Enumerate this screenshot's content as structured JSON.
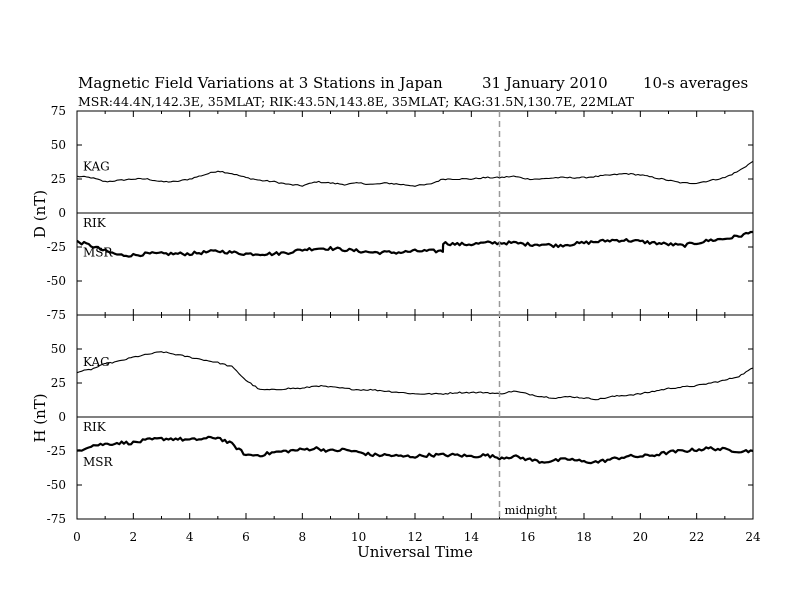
{
  "header": {
    "title": "Magnetic Field Variations at 3 Stations in Japan",
    "date": "31 January 2010",
    "averaging": "10-s averages",
    "stations": "MSR:44.4N,142.3E, 35MLAT;  RIK:43.5N,143.8E, 35MLAT;  KAG:31.5N,130.7E, 22MLAT"
  },
  "chart_data": [
    {
      "type": "line",
      "panel": "D",
      "ylabel": "D (nT)",
      "ylim": [
        -75,
        75
      ],
      "yticks": [
        75,
        50,
        25,
        0,
        -25,
        -50,
        -75
      ],
      "xlim": [
        0,
        24
      ],
      "zero_line": true,
      "zero_line_label": "RIK",
      "series": [
        {
          "name": "KAG",
          "x": [
            0,
            0.5,
            1,
            1.5,
            2,
            2.5,
            3,
            3.5,
            4,
            4.5,
            5,
            5.5,
            6,
            6.5,
            7,
            7.5,
            8,
            8.5,
            9,
            9.5,
            10,
            10.5,
            11,
            11.5,
            12,
            12.5,
            13,
            13.5,
            14,
            14.5,
            15,
            15.5,
            16,
            16.5,
            17,
            17.5,
            18,
            18.5,
            19,
            19.5,
            20,
            20.5,
            21,
            21.5,
            22,
            22.5,
            23,
            23.5,
            24
          ],
          "values": [
            27,
            26,
            23,
            24,
            25,
            25,
            23,
            23,
            25,
            28,
            31,
            29,
            26,
            24,
            23,
            21,
            20,
            23,
            22,
            21,
            22,
            21,
            22,
            21,
            20,
            21,
            25,
            25,
            25,
            26,
            26,
            27,
            25,
            25,
            26,
            26,
            26,
            27,
            28,
            29,
            28,
            26,
            24,
            22,
            22,
            24,
            26,
            31,
            38
          ]
        },
        {
          "name": "MSR",
          "x": [
            0,
            0.5,
            1,
            1.5,
            2,
            2.5,
            3,
            3.5,
            4,
            4.5,
            5,
            5.5,
            6,
            6.5,
            7,
            7.5,
            8,
            8.5,
            9,
            9.5,
            10,
            10.5,
            11,
            11.5,
            12,
            12.5,
            12.99,
            13,
            13.5,
            14,
            14.5,
            15,
            15.5,
            16,
            16.5,
            17,
            17.5,
            18,
            18.5,
            19,
            19.5,
            20,
            20.5,
            21,
            21.5,
            22,
            22.5,
            23,
            23.5,
            24
          ],
          "values": [
            -21,
            -24,
            -28,
            -31,
            -31,
            -30,
            -30,
            -30,
            -30,
            -29,
            -28,
            -29,
            -30,
            -30,
            -30,
            -29,
            -27,
            -26,
            -26,
            -27,
            -28,
            -29,
            -29,
            -29,
            -28,
            -28,
            -28,
            -22,
            -23,
            -23,
            -22,
            -22,
            -22,
            -23,
            -23,
            -24,
            -23,
            -22,
            -21,
            -20,
            -20,
            -21,
            -22,
            -23,
            -24,
            -22,
            -20,
            -19,
            -17,
            -14
          ]
        }
      ]
    },
    {
      "type": "line",
      "panel": "H",
      "ylabel": "H (nT)",
      "ylim": [
        -75,
        75
      ],
      "yticks": [
        75,
        50,
        25,
        0,
        -25,
        -50,
        -75
      ],
      "xlim": [
        0,
        24
      ],
      "xticks": [
        0,
        2,
        4,
        6,
        8,
        10,
        12,
        14,
        16,
        18,
        20,
        22,
        24
      ],
      "xlabel": "Universal Time",
      "zero_line": true,
      "zero_line_label": "RIK",
      "series": [
        {
          "name": "KAG",
          "x": [
            0,
            0.5,
            1,
            1.5,
            2,
            2.5,
            3,
            3.5,
            4,
            4.5,
            5,
            5.5,
            6,
            6.5,
            7,
            7.5,
            8,
            8.5,
            9,
            9.5,
            10,
            10.5,
            11,
            11.5,
            12,
            12.5,
            13,
            13.5,
            14,
            14.5,
            15,
            15.5,
            16,
            16.5,
            17,
            17.5,
            18,
            18.5,
            19,
            19.5,
            20,
            20.5,
            21,
            21.5,
            22,
            22.5,
            23,
            23.5,
            24
          ],
          "values": [
            33,
            35,
            39,
            41,
            44,
            46,
            48,
            46,
            44,
            42,
            40,
            37,
            27,
            20,
            20,
            21,
            21,
            23,
            22,
            21,
            20,
            20,
            19,
            18,
            17,
            17,
            17,
            18,
            18,
            18,
            17,
            19,
            17,
            15,
            14,
            15,
            14,
            13,
            15,
            16,
            17,
            19,
            21,
            22,
            23,
            25,
            27,
            30,
            36
          ]
        },
        {
          "name": "MSR",
          "x": [
            0,
            0.5,
            1,
            1.5,
            2,
            2.5,
            3,
            3.5,
            4,
            4.5,
            5,
            5.5,
            6,
            6.5,
            7,
            7.5,
            8,
            8.5,
            9,
            9.5,
            10,
            10.5,
            11,
            11.5,
            12,
            12.5,
            13,
            13.5,
            14,
            14.5,
            15,
            15.5,
            16,
            16.5,
            17,
            17.5,
            18,
            18.5,
            19,
            19.5,
            20,
            20.5,
            21,
            21.5,
            22,
            22.5,
            23,
            23.5,
            24
          ],
          "values": [
            -25,
            -21,
            -20,
            -19,
            -19,
            -17,
            -16,
            -16,
            -17,
            -16,
            -15,
            -20,
            -28,
            -28,
            -26,
            -25,
            -24,
            -23,
            -25,
            -24,
            -26,
            -28,
            -28,
            -29,
            -29,
            -28,
            -28,
            -28,
            -29,
            -28,
            -30,
            -29,
            -31,
            -33,
            -32,
            -31,
            -33,
            -33,
            -31,
            -29,
            -29,
            -28,
            -26,
            -25,
            -24,
            -23,
            -24,
            -25,
            -25
          ]
        }
      ]
    }
  ],
  "annotations": {
    "midnight_time": 15,
    "midnight_label": "midnight",
    "line_style": "dashed gray vertical line"
  },
  "colors": {
    "series": "#000000",
    "axes": "#000000",
    "midnight_line": "#999999",
    "background": "#ffffff"
  }
}
